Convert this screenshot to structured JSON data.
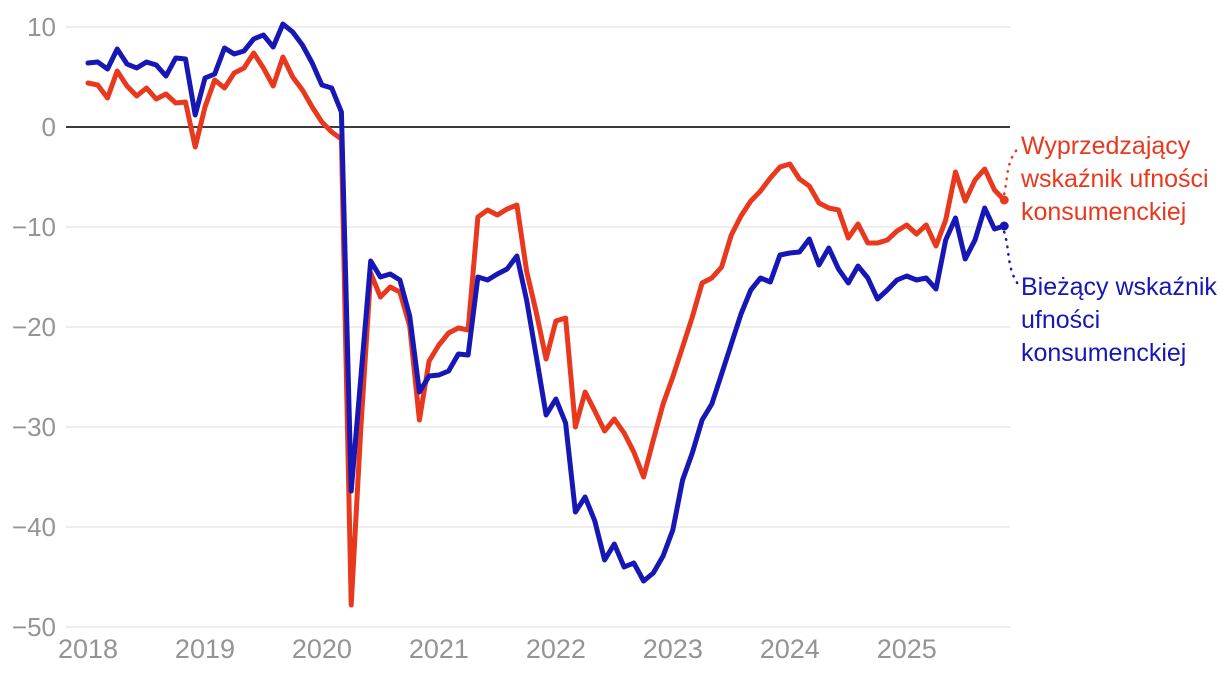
{
  "chart_data": {
    "type": "line",
    "x_axis": {
      "interval": "monthly",
      "start": "2018-01",
      "end": "2025-11",
      "tick_labels": [
        "2018",
        "2019",
        "2020",
        "2021",
        "2022",
        "2023",
        "2024",
        "2025"
      ]
    },
    "y_axis": {
      "ticks": [
        10,
        0,
        -10,
        -20,
        -30,
        -40,
        -50
      ],
      "tick_labels": [
        "10",
        "0",
        "−10",
        "−20",
        "−30",
        "−40",
        "−50"
      ],
      "range": [
        -50,
        12
      ]
    },
    "grid": "horizontal",
    "zero_line": true,
    "legend_position": "right",
    "colors": {
      "grid": "#e9e9e9",
      "zero_line": "#3c3c3c",
      "tick_text": "#949494",
      "background": "#ffffff"
    },
    "series": [
      {
        "id": "wwuk",
        "name": "Wyprzedzający wskaźnik ufności konsumenckiej",
        "color": "#e8391f",
        "values": [
          4.4,
          4.2,
          2.9,
          5.6,
          4.1,
          3.1,
          3.9,
          2.8,
          3.3,
          2.4,
          2.5,
          -2.0,
          2.0,
          4.7,
          3.9,
          5.4,
          5.9,
          7.4,
          5.9,
          4.1,
          7.0,
          5.0,
          3.7,
          2.0,
          0.5,
          -0.5,
          -1.2,
          -47.8,
          -30.0,
          -14.6,
          -17.0,
          -16.0,
          -16.5,
          -19.9,
          -29.3,
          -23.4,
          -21.8,
          -20.6,
          -20.1,
          -20.3,
          -9.0,
          -8.3,
          -8.8,
          -8.2,
          -7.8,
          -14.4,
          -18.6,
          -23.2,
          -19.4,
          -19.1,
          -30.0,
          -26.5,
          -28.4,
          -30.4,
          -29.2,
          -30.6,
          -32.5,
          -35.0,
          -31.3,
          -27.7,
          -25.0,
          -22.0,
          -19.0,
          -15.6,
          -15.1,
          -14.0,
          -10.8,
          -8.9,
          -7.4,
          -6.4,
          -5.1,
          -4.0,
          -3.7,
          -5.2,
          -5.9,
          -7.6,
          -8.1,
          -8.3,
          -11.1,
          -9.7,
          -11.6,
          -11.6,
          -11.3,
          -10.4,
          -9.8,
          -10.7,
          -9.8,
          -11.9,
          -9.3,
          -4.5,
          -7.4,
          -5.3,
          -4.2,
          -6.3,
          -7.3
        ]
      },
      {
        "id": "bwuk",
        "name": "Bieżący wskaźnik ufności konsumenckiej",
        "color": "#1717b5",
        "values": [
          6.4,
          6.5,
          5.8,
          7.8,
          6.3,
          5.9,
          6.5,
          6.2,
          5.1,
          6.9,
          6.8,
          1.2,
          4.9,
          5.3,
          7.9,
          7.3,
          7.6,
          8.8,
          9.2,
          8.0,
          10.3,
          9.5,
          8.2,
          6.4,
          4.2,
          3.9,
          1.5,
          -36.4,
          -25.0,
          -13.4,
          -15.0,
          -14.7,
          -15.3,
          -18.9,
          -26.5,
          -24.9,
          -24.8,
          -24.4,
          -22.7,
          -22.8,
          -15.0,
          -15.3,
          -14.7,
          -14.2,
          -12.9,
          -17.3,
          -23.0,
          -28.8,
          -27.2,
          -29.6,
          -38.5,
          -37.0,
          -39.4,
          -43.3,
          -41.7,
          -44.0,
          -43.6,
          -45.4,
          -44.6,
          -42.9,
          -40.3,
          -35.3,
          -32.6,
          -29.3,
          -27.7,
          -24.7,
          -21.7,
          -18.7,
          -16.3,
          -15.1,
          -15.5,
          -12.8,
          -12.6,
          -12.5,
          -11.2,
          -13.8,
          -12.1,
          -14.2,
          -15.6,
          -13.9,
          -15.1,
          -17.2,
          -16.3,
          -15.3,
          -14.9,
          -15.3,
          -15.1,
          -16.2,
          -11.3,
          -9.1,
          -13.2,
          -11.3,
          -8.1,
          -10.2,
          -9.9
        ]
      }
    ]
  }
}
